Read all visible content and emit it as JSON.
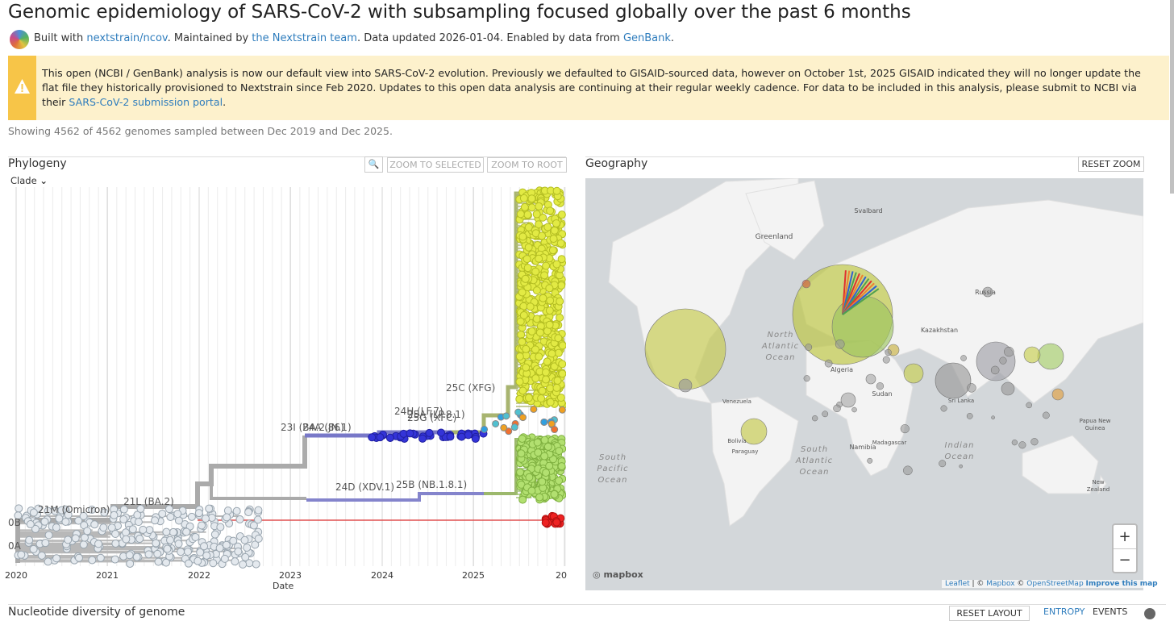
{
  "header": {
    "title": "Genomic epidemiology of SARS-CoV-2 with subsampling focused globally over the past 6 months",
    "byline": {
      "prefix": "Built with",
      "build_link": "nextstrain/ncov",
      "maintained": ". Maintained by",
      "team_link": "the Nextstrain team",
      "updated": ". Data updated 2026-01-04. Enabled by data from",
      "source_link": "GenBank",
      "end": "."
    }
  },
  "banner": {
    "text": "This open (NCBI / GenBank) analysis is now our default view into SARS-CoV-2 evolution. Previously we defaulted to GISAID-sourced data, however on October 1st, 2025 GISAID indicated they will no longer update the flat file they historically provisioned to Nextstrain since Feb 2020. Updates to this open data analysis are continuing at their regular weekly cadence. For data to be included in this analysis, please submit to NCBI via their",
    "link": "SARS-CoV-2 submission portal",
    "end": "."
  },
  "summary": "Showing 4562 of 4562 genomes sampled between Dec 2019 and Dec 2025.",
  "phylogeny": {
    "title": "Phylogeny",
    "color_by": "Clade",
    "buttons": [
      "ZOOM TO SELECTED",
      "ZOOM TO ROOT"
    ],
    "clade_labels": [
      "25C (XFG)",
      "24H (LF.7)",
      "25A (LP.8.1)",
      "25G (XFC)",
      "23I (BA.2.86)",
      "24A (JN.1)",
      "24D (XDV.1)",
      "25B (NB.1.8.1)",
      "21L (BA.2)",
      "21M (Omicron)",
      "0B",
      "0A"
    ],
    "x_ticks": [
      "2020",
      "2021",
      "2022",
      "2023",
      "2024",
      "2025",
      "20"
    ],
    "x_label": "Date"
  },
  "geography": {
    "title": "Geography",
    "button": "RESET ZOOM",
    "map_labels": [
      "Greenland",
      "Svalbard",
      "Russia",
      "Kazakhstan",
      "North",
      "Atlantic",
      "Ocean",
      "Algeria",
      "Sudan",
      "Namibia",
      "Madagascar",
      "Venezuela",
      "Bolivia",
      "Paraguay",
      "South",
      "Pacific",
      "Ocean",
      "South",
      "Atlantic",
      "Ocean",
      "Indian",
      "Ocean",
      "Sri Lanka",
      "Papua New",
      "Guinea",
      "New",
      "Zealand"
    ],
    "zoom": [
      "+",
      "−"
    ],
    "logo": "mapbox",
    "attribution": [
      "Leaflet",
      " | © ",
      "Mapbox",
      " © ",
      "OpenStreetMap",
      "Improve this map"
    ]
  },
  "footer": {
    "title": "Nucleotide diversity of genome",
    "buttons": [
      "RESET LAYOUT",
      "ENTROPY",
      "EVENTS"
    ]
  }
}
